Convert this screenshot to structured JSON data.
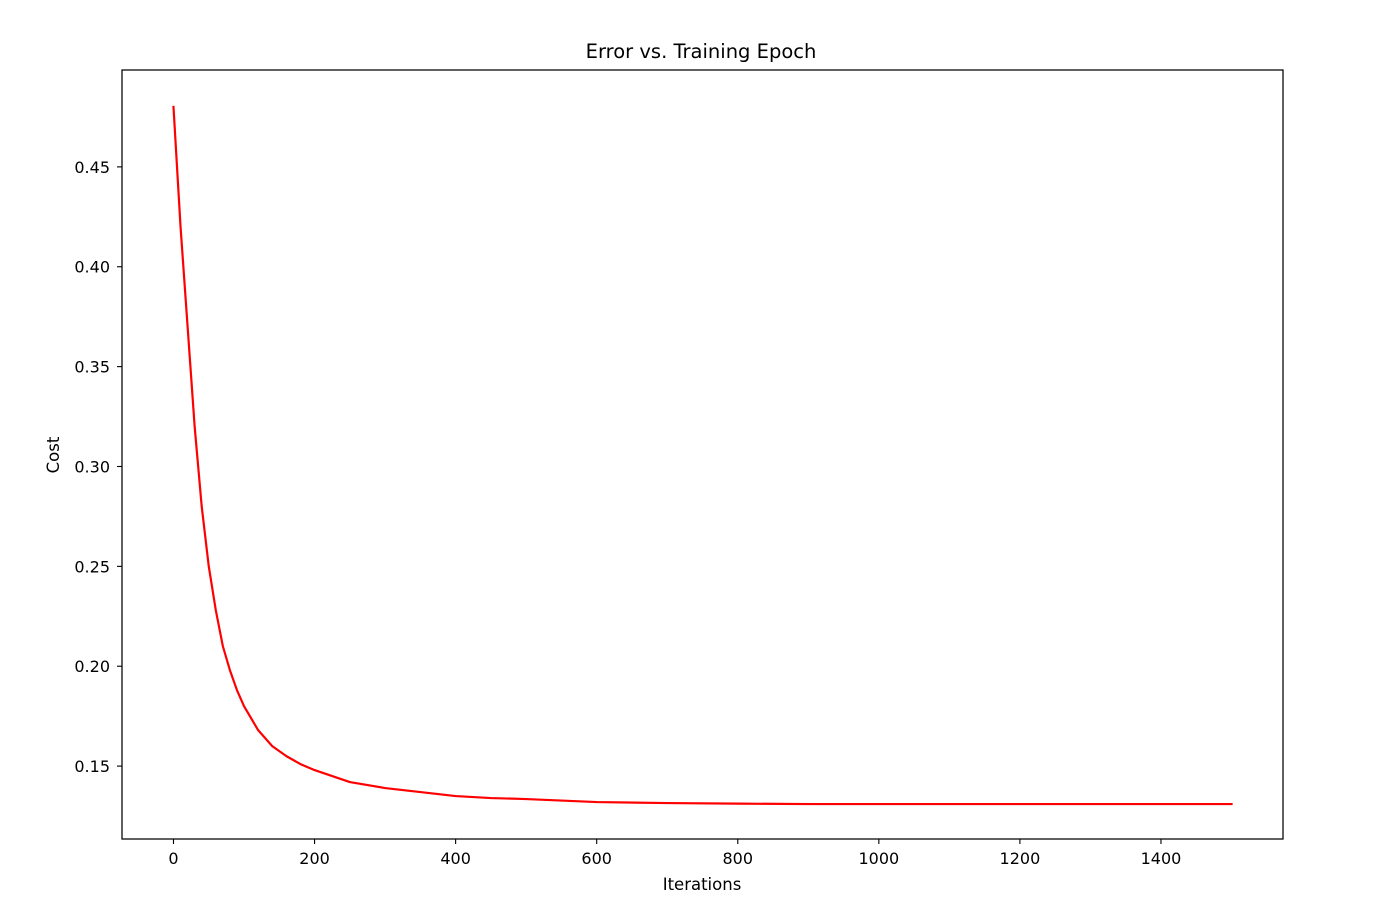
{
  "chart_data": {
    "type": "line",
    "title": "Error vs. Training Epoch",
    "xlabel": "Iterations",
    "ylabel": "Cost",
    "xlim": [
      -73,
      1573
    ],
    "ylim": [
      0.1135,
      0.4985
    ],
    "xticks": [
      0,
      200,
      400,
      600,
      800,
      1000,
      1200,
      1400
    ],
    "xtick_labels": [
      "0",
      "200",
      "400",
      "600",
      "800",
      "1000",
      "1200",
      "1400"
    ],
    "yticks": [
      0.15,
      0.2,
      0.25,
      0.3,
      0.35,
      0.4,
      0.45
    ],
    "ytick_labels": [
      "0.15",
      "0.20",
      "0.25",
      "0.30",
      "0.35",
      "0.40",
      "0.45"
    ],
    "grid": false,
    "legend": "none",
    "series": [
      {
        "color": "#ff0000",
        "x": [
          0,
          10,
          20,
          30,
          40,
          50,
          60,
          70,
          80,
          90,
          100,
          120,
          140,
          160,
          180,
          200,
          250,
          300,
          350,
          400,
          450,
          500,
          600,
          700,
          800,
          900,
          1000,
          1100,
          1200,
          1300,
          1400,
          1500
        ],
        "y": [
          0.48,
          0.42,
          0.37,
          0.32,
          0.28,
          0.25,
          0.228,
          0.21,
          0.198,
          0.188,
          0.18,
          0.168,
          0.16,
          0.155,
          0.151,
          0.148,
          0.142,
          0.139,
          0.137,
          0.135,
          0.134,
          0.1335,
          0.132,
          0.1315,
          0.1312,
          0.131,
          0.131,
          0.131,
          0.131,
          0.131,
          0.131,
          0.131
        ]
      }
    ]
  }
}
